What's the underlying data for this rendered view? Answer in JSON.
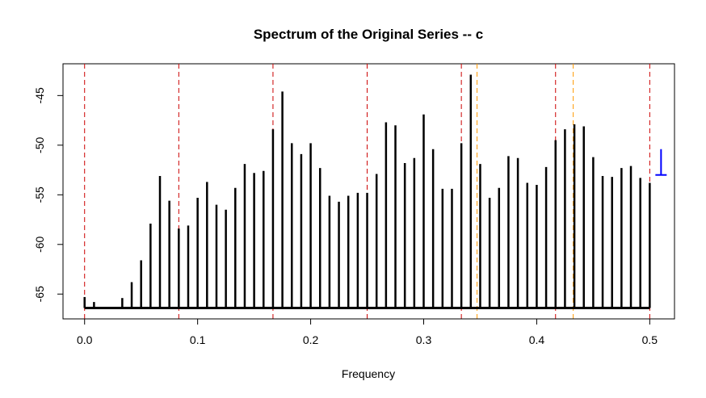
{
  "chart_data": {
    "type": "bar",
    "title": "Spectrum of the Original Series  --  c",
    "xlabel": "Frequency",
    "ylabel": "",
    "xlim": [
      -0.0191,
      0.5219
    ],
    "ylim": [
      -67.5,
      -41.8
    ],
    "baseline": -66.4,
    "x_ticks": [
      0.0,
      0.1,
      0.2,
      0.3,
      0.4,
      0.5
    ],
    "x_tick_labels": [
      "0.0",
      "0.1",
      "0.2",
      "0.3",
      "0.4",
      "0.5"
    ],
    "y_ticks": [
      -65,
      -60,
      -55,
      -50,
      -45
    ],
    "y_tick_labels": [
      "-65",
      "-60",
      "-55",
      "-50",
      "-45"
    ],
    "grid": false,
    "legend": "none",
    "colors": {
      "spikes": "#000000",
      "main_lines": "#cc0000",
      "secondary_lines": "#ff9900",
      "bandwidth_marker": "#0000ff"
    },
    "series": [
      {
        "x": [
          0.0,
          0.00833,
          0.01667,
          0.025,
          0.03333,
          0.04167,
          0.05,
          0.05833,
          0.06667,
          0.075,
          0.08333,
          0.09167,
          0.1,
          0.10833,
          0.11667,
          0.125,
          0.13333,
          0.14167,
          0.15,
          0.15833,
          0.16667,
          0.175,
          0.18333,
          0.19167,
          0.2,
          0.20833,
          0.21667,
          0.225,
          0.23333,
          0.24167,
          0.25,
          0.25833,
          0.26667,
          0.275,
          0.28333,
          0.29167,
          0.3,
          0.30833,
          0.31667,
          0.325,
          0.33333,
          0.34167,
          0.35,
          0.35833,
          0.36667,
          0.375,
          0.38333,
          0.39167,
          0.4,
          0.40833,
          0.41667,
          0.425,
          0.43333,
          0.44167,
          0.45,
          0.45833,
          0.46667,
          0.475,
          0.48333,
          0.49167,
          0.5
        ],
        "values": [
          -65.3,
          -65.8,
          -66.4,
          -66.4,
          -65.4,
          -63.8,
          -61.6,
          -57.9,
          -53.1,
          -55.6,
          -58.4,
          -58.1,
          -55.3,
          -53.7,
          -56.0,
          -56.5,
          -54.3,
          -51.9,
          -52.8,
          -52.6,
          -48.4,
          -44.6,
          -49.8,
          -50.9,
          -49.8,
          -52.3,
          -55.1,
          -55.7,
          -55.1,
          -54.8,
          -54.8,
          -52.9,
          -47.7,
          -48.0,
          -51.8,
          -51.3,
          -46.9,
          -50.4,
          -54.4,
          -54.4,
          -49.8,
          -42.9,
          -51.9,
          -55.3,
          -54.3,
          -51.1,
          -51.3,
          -53.8,
          -54.0,
          -52.2,
          -49.5,
          -48.4,
          -47.9,
          -48.1,
          -51.2,
          -53.1,
          -53.2,
          -52.3,
          -52.1,
          -53.3,
          -53.8
        ]
      }
    ],
    "reference_lines_main": [
      0.0,
      0.08333,
      0.16667,
      0.25,
      0.33333,
      0.41667,
      0.5
    ],
    "reference_lines_secondary": [
      0.34722,
      0.43229
    ],
    "bandwidth_marker": {
      "x": 0.51,
      "y_top": -50.4,
      "y_bottom": -53.0
    }
  }
}
